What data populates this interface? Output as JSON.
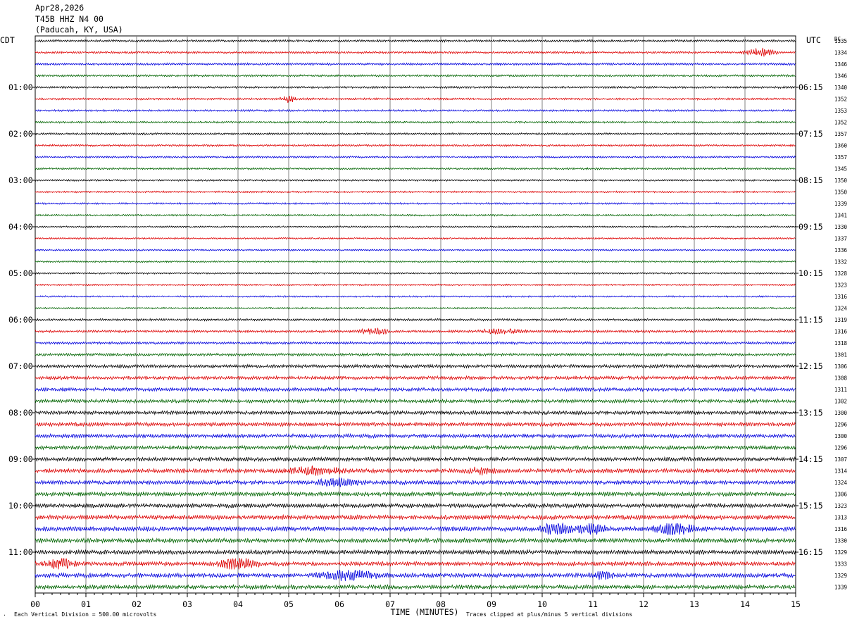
{
  "header": {
    "date": "Apr28,2026",
    "station": "T45B HHZ N4 00",
    "location": "(Paducah, KY, USA)"
  },
  "left_axis_title": "CDT",
  "right_axis_title": "UTC",
  "dc_title": "DC",
  "footer": {
    "scale_note": "Each Vertical Division =  500.00 microvolts",
    "clip_note": "Traces clipped at plus/minus 5 vertical divisions",
    "corner_mark": "·"
  },
  "colors": {
    "trace_cycle": [
      "#000000",
      "#dd0000",
      "#0000dd",
      "#006400"
    ],
    "grid": "#808080"
  },
  "chart_data": {
    "type": "line",
    "subtype": "helicorder",
    "xlabel": "TIME (MINUTES)",
    "x_ticks": [
      "00",
      "01",
      "02",
      "03",
      "04",
      "05",
      "06",
      "07",
      "08",
      "09",
      "10",
      "11",
      "12",
      "13",
      "14",
      "15"
    ],
    "xlim": [
      0,
      15
    ],
    "traces_per_hour": 4,
    "left_hour_labels": [
      "01:00",
      "02:00",
      "03:00",
      "04:00",
      "05:00",
      "06:00",
      "07:00",
      "08:00",
      "09:00",
      "10:00",
      "11:00"
    ],
    "right_hour_labels": [
      "06:15",
      "07:15",
      "08:15",
      "09:15",
      "10:15",
      "11:15",
      "12:15",
      "13:15",
      "14:15",
      "15:15",
      "16:15"
    ],
    "dc_offsets": [
      1335,
      1334,
      1346,
      1346,
      1340,
      1352,
      1353,
      1352,
      1357,
      1360,
      1357,
      1345,
      1350,
      1350,
      1339,
      1341,
      1330,
      1337,
      1336,
      1332,
      1328,
      1323,
      1316,
      1324,
      1319,
      1316,
      1318,
      1301,
      1306,
      1308,
      1311,
      1302,
      1300,
      1296,
      1300,
      1296,
      1307,
      1314,
      1324,
      1306,
      1323,
      1313,
      1316,
      1330,
      1329,
      1333,
      1329,
      1339
    ],
    "noise_level": [
      1.6,
      1.6,
      1.6,
      1.5,
      1.5,
      1.5,
      1.4,
      1.4,
      1.4,
      1.4,
      1.4,
      1.4,
      1.3,
      1.3,
      1.3,
      1.3,
      1.2,
      1.2,
      1.2,
      1.2,
      1.2,
      1.2,
      1.2,
      1.2,
      1.6,
      1.8,
      1.8,
      2.0,
      2.4,
      2.5,
      2.6,
      2.6,
      2.7,
      2.8,
      2.8,
      2.8,
      2.9,
      3.0,
      3.0,
      3.0,
      3.0,
      3.2,
      3.4,
      3.2,
      3.1,
      3.1,
      3.2,
      3.1
    ],
    "events": [
      {
        "trace": 1,
        "minute": 14.3,
        "duration": 0.4,
        "amp": 6
      },
      {
        "trace": 5,
        "minute": 5.0,
        "duration": 0.2,
        "amp": 5
      },
      {
        "trace": 25,
        "minute": 6.7,
        "duration": 0.4,
        "amp": 4
      },
      {
        "trace": 25,
        "minute": 9.2,
        "duration": 0.6,
        "amp": 4
      },
      {
        "trace": 37,
        "minute": 5.5,
        "duration": 0.8,
        "amp": 5
      },
      {
        "trace": 37,
        "minute": 8.8,
        "duration": 0.4,
        "amp": 5
      },
      {
        "trace": 38,
        "minute": 6.0,
        "duration": 0.6,
        "amp": 5
      },
      {
        "trace": 42,
        "minute": 10.3,
        "duration": 0.4,
        "amp": 9
      },
      {
        "trace": 42,
        "minute": 11.0,
        "duration": 0.4,
        "amp": 9
      },
      {
        "trace": 42,
        "minute": 12.6,
        "duration": 0.5,
        "amp": 10
      },
      {
        "trace": 45,
        "minute": 0.5,
        "duration": 0.4,
        "amp": 7
      },
      {
        "trace": 45,
        "minute": 4.0,
        "duration": 0.5,
        "amp": 8
      },
      {
        "trace": 46,
        "minute": 6.2,
        "duration": 0.8,
        "amp": 7
      },
      {
        "trace": 46,
        "minute": 11.2,
        "duration": 0.3,
        "amp": 5
      }
    ]
  }
}
